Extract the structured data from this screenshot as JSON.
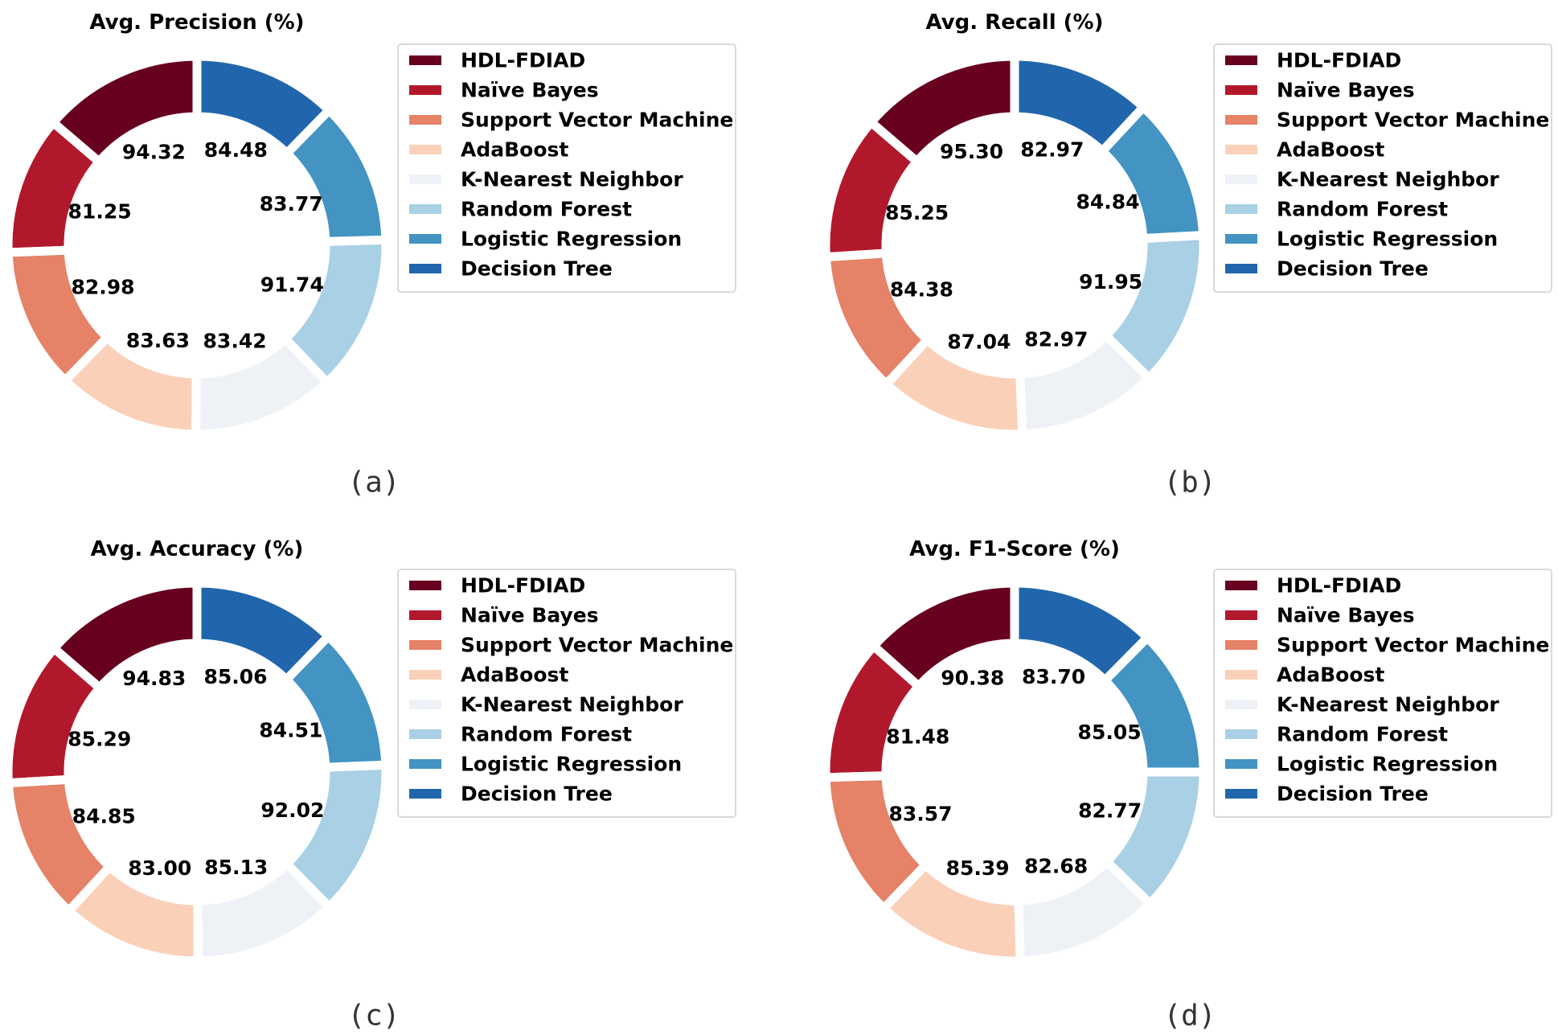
{
  "figure": {
    "palette": [
      "#67001f",
      "#b2182b",
      "#e58267",
      "#fbd0b9",
      "#eef2f6",
      "#a9d0e5",
      "#4393c3",
      "#2166ac"
    ],
    "legend_labels": [
      "HDL-FDIAD",
      "Naïve Bayes",
      "Support Vector Machine",
      "AdaBoost",
      "K-Nearest Neighbor",
      "Random Forest",
      "Logistic Regression",
      "Decision Tree"
    ]
  },
  "chart_data": [
    {
      "type": "pie",
      "style": "donut",
      "title": "Avg. Precision (%)",
      "panel_label": "(a)",
      "categories": [
        "HDL-FDIAD",
        "Naïve Bayes",
        "Support Vector Machine",
        "AdaBoost",
        "K-Nearest Neighbor",
        "Random Forest",
        "Logistic Regression",
        "Decision Tree"
      ],
      "values": [
        94.32,
        81.25,
        82.98,
        83.63,
        83.42,
        91.74,
        83.77,
        84.48
      ],
      "value_labels": [
        "94.32",
        "81.25",
        "82.98",
        "83.63",
        "83.42",
        "91.74",
        "83.77",
        "84.48"
      ],
      "legend_position": "right"
    },
    {
      "type": "pie",
      "style": "donut",
      "title": "Avg. Recall (%)",
      "panel_label": "(b)",
      "categories": [
        "HDL-FDIAD",
        "Naïve Bayes",
        "Support Vector Machine",
        "AdaBoost",
        "K-Nearest Neighbor",
        "Random Forest",
        "Logistic Regression",
        "Decision Tree"
      ],
      "values": [
        95.3,
        85.25,
        84.38,
        87.04,
        82.97,
        91.95,
        84.84,
        82.97
      ],
      "value_labels": [
        "95.30",
        "85.25",
        "84.38",
        "87.04",
        "82.97",
        "91.95",
        "84.84",
        "82.97"
      ],
      "legend_position": "right"
    },
    {
      "type": "pie",
      "style": "donut",
      "title": "Avg. Accuracy (%)",
      "panel_label": "(c)",
      "categories": [
        "HDL-FDIAD",
        "Naïve Bayes",
        "Support Vector Machine",
        "AdaBoost",
        "K-Nearest Neighbor",
        "Random Forest",
        "Logistic Regression",
        "Decision Tree"
      ],
      "values": [
        94.83,
        85.29,
        84.85,
        83.0,
        85.13,
        92.02,
        84.51,
        85.06
      ],
      "value_labels": [
        "94.83",
        "85.29",
        "84.85",
        "83.00",
        "85.13",
        "92.02",
        "84.51",
        "85.06"
      ],
      "legend_position": "right"
    },
    {
      "type": "pie",
      "style": "donut",
      "title": "Avg. F1-Score (%)",
      "panel_label": "(d)",
      "categories": [
        "HDL-FDIAD",
        "Naïve Bayes",
        "Support Vector Machine",
        "AdaBoost",
        "K-Nearest Neighbor",
        "Random Forest",
        "Logistic Regression",
        "Decision Tree"
      ],
      "values": [
        90.38,
        81.48,
        83.57,
        85.39,
        82.68,
        82.77,
        85.05,
        83.7
      ],
      "value_labels": [
        "90.38",
        "81.48",
        "83.57",
        "85.39",
        "82.68",
        "82.77",
        "85.05",
        "83.70"
      ],
      "legend_position": "right"
    }
  ]
}
